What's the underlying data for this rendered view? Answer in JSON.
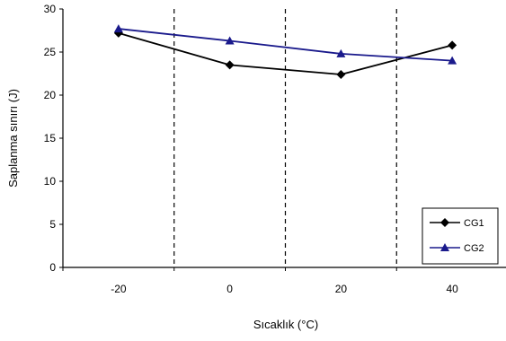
{
  "chart_data": {
    "type": "line",
    "title": "",
    "xlabel": "Sıcaklık (°C)",
    "ylabel": "Saplanma sınırı (J)",
    "x": [
      -20,
      0,
      20,
      40
    ],
    "x_tick_labels": [
      "-20",
      "0",
      "20",
      "40"
    ],
    "y_ticks": [
      0,
      5,
      10,
      15,
      20,
      25,
      30
    ],
    "ylim": [
      0,
      30
    ],
    "grid": "vertical dashed separators between categories",
    "legend_position": "bottom-right",
    "series": [
      {
        "name": "CG1",
        "values": [
          27.2,
          23.5,
          22.4,
          25.8
        ],
        "color": "#000000",
        "marker": "diamond"
      },
      {
        "name": "CG2",
        "values": [
          27.7,
          26.3,
          24.8,
          24.0
        ],
        "color": "#1a1a8c",
        "marker": "triangle"
      }
    ]
  }
}
